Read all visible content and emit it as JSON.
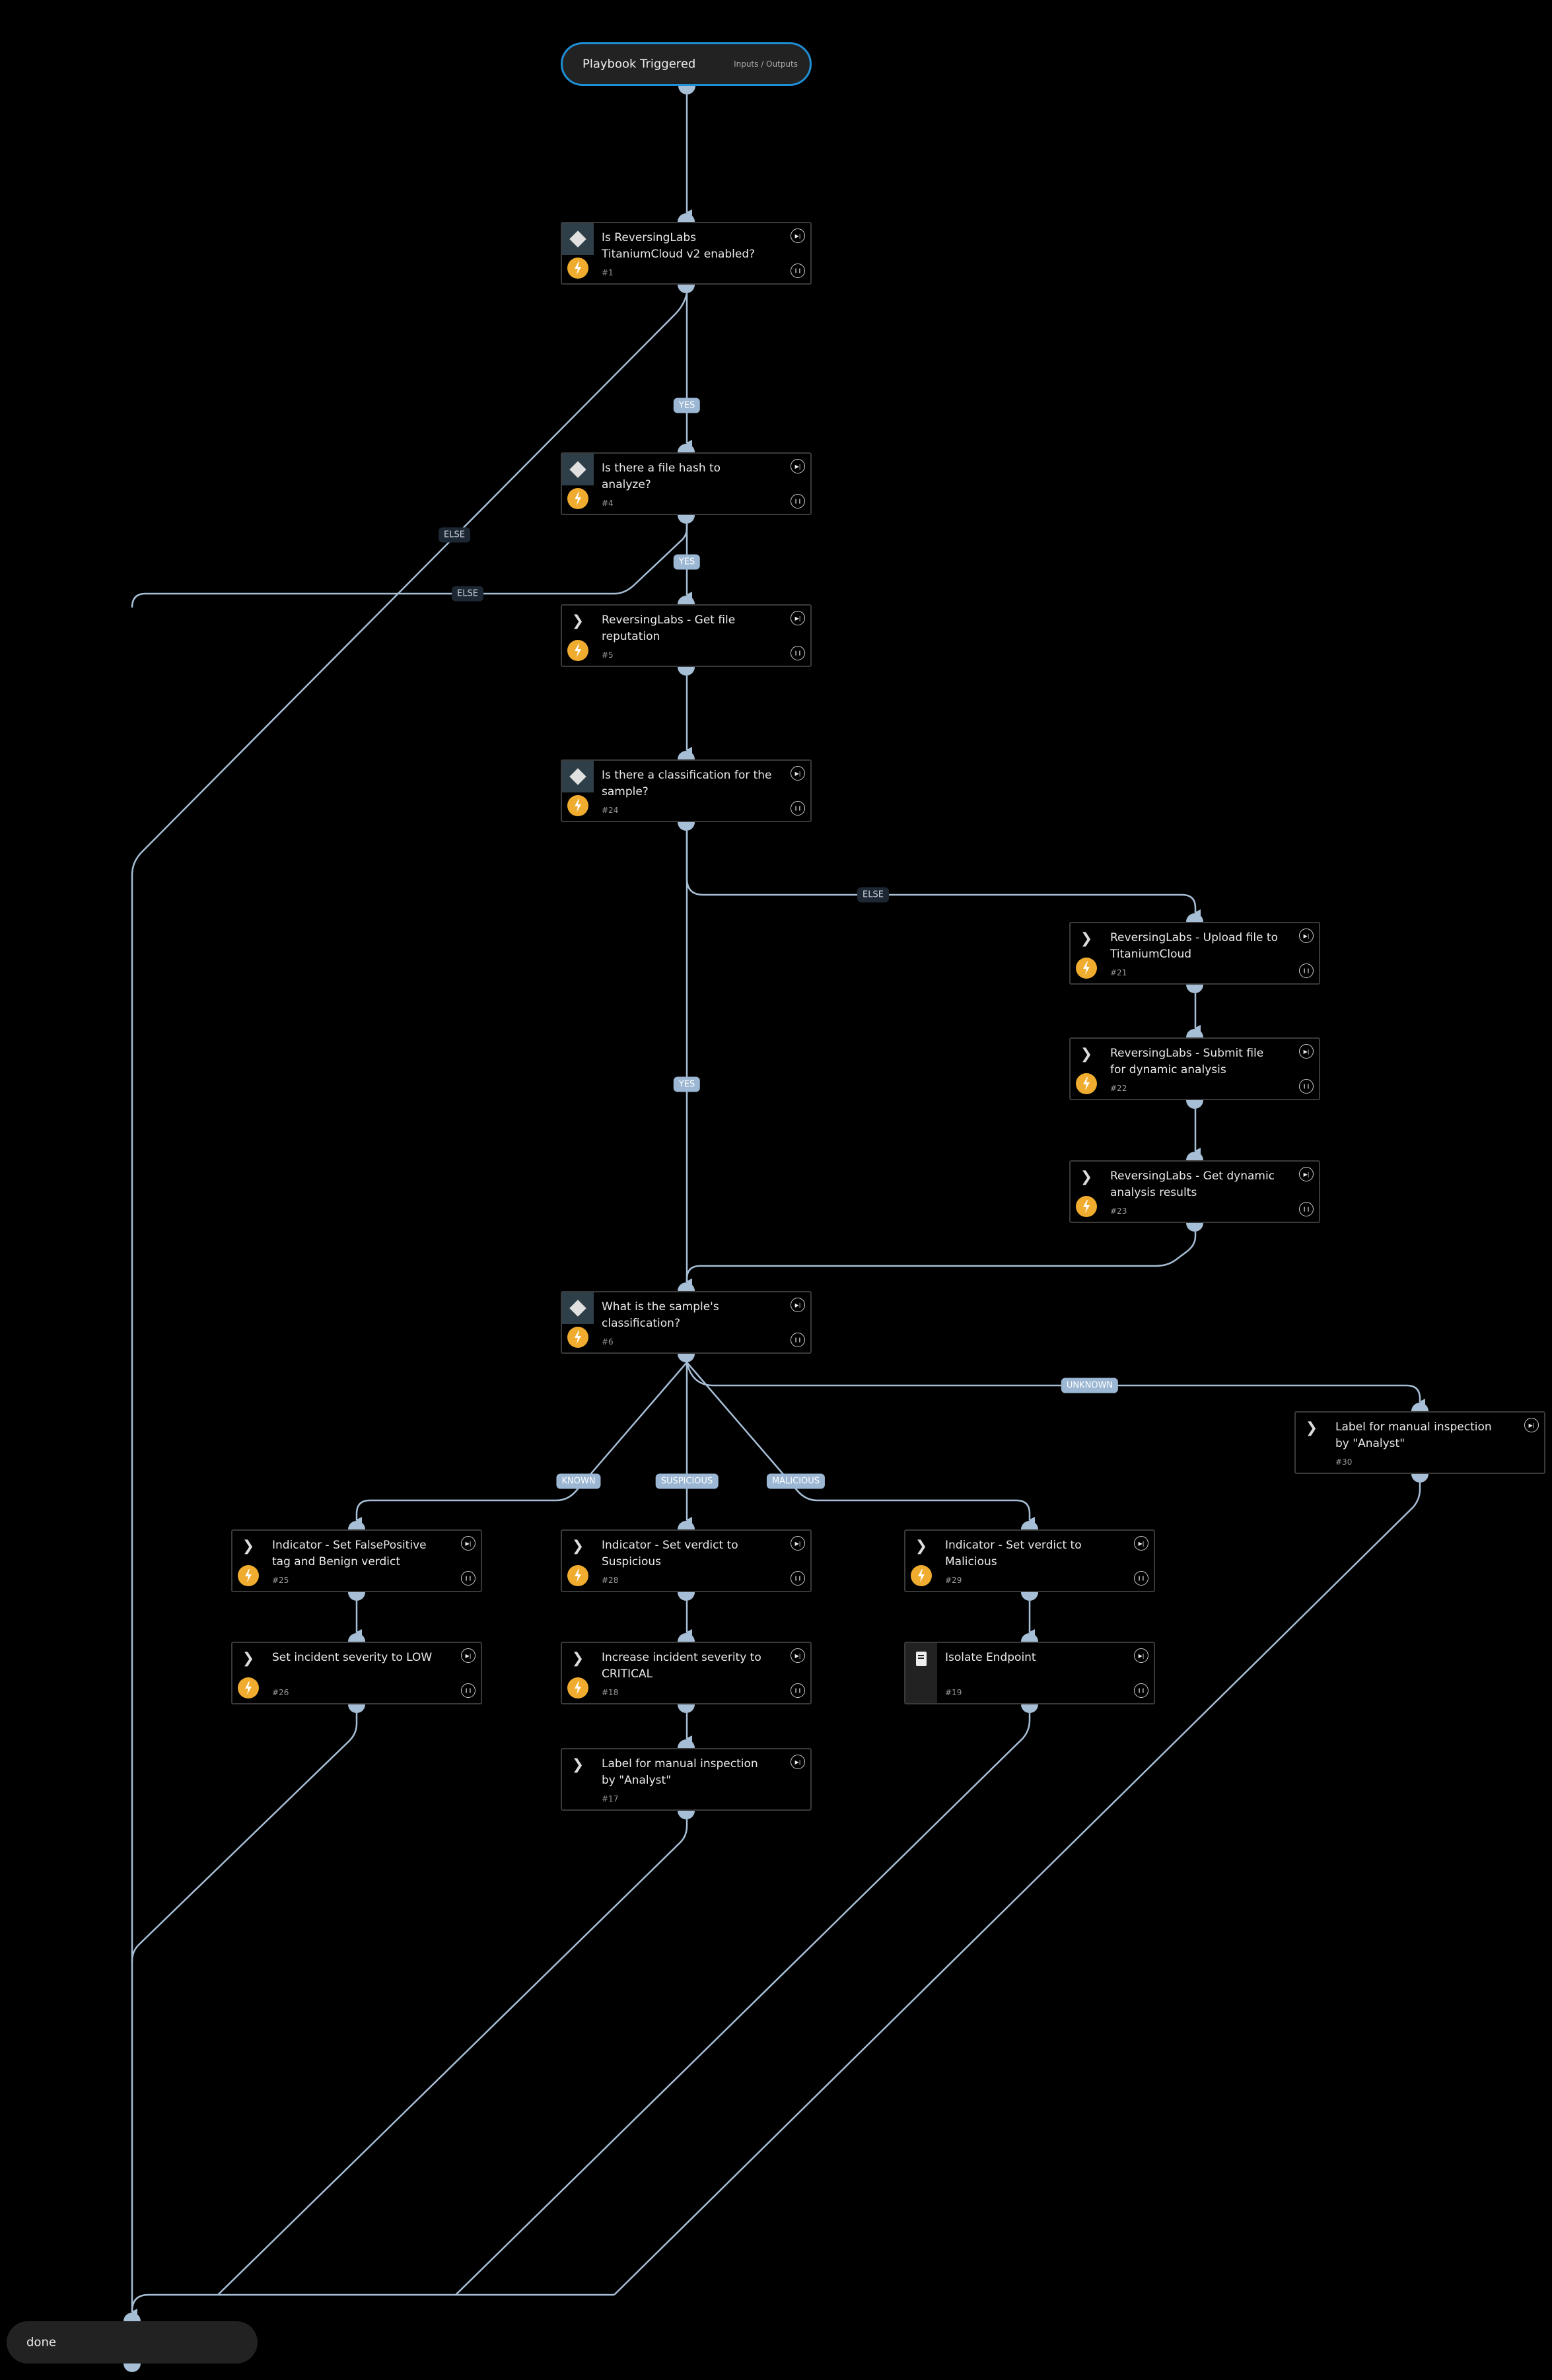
{
  "start": {
    "title": "Playbook Triggered",
    "io_label": "Inputs / Outputs"
  },
  "end": {
    "title": "done"
  },
  "colors": {
    "edge": "#a7bfd6",
    "start_border": "#1f8fd6",
    "bolt": "#f0ac2e",
    "condition_label_bg": "#9cb7d3",
    "else_label_bg": "#1d2733"
  },
  "nodes": [
    {
      "id": "1",
      "number": "#1",
      "title": "Is ReversingLabs TitaniumCloud v2 enabled?",
      "type": "condition",
      "icon": "diamond-icon",
      "automated": true
    },
    {
      "id": "4",
      "number": "#4",
      "title": "Is there a file hash to analyze?",
      "type": "condition",
      "icon": "diamond-icon",
      "automated": true
    },
    {
      "id": "5",
      "number": "#5",
      "title": "ReversingLabs - Get file reputation",
      "type": "task",
      "icon": "chevron-icon",
      "automated": true
    },
    {
      "id": "24",
      "number": "#24",
      "title": "Is there a classification for the sample?",
      "type": "condition",
      "icon": "diamond-icon",
      "automated": true
    },
    {
      "id": "21",
      "number": "#21",
      "title": "ReversingLabs - Upload file to TitaniumCloud",
      "type": "task",
      "icon": "chevron-icon",
      "automated": true
    },
    {
      "id": "22",
      "number": "#22",
      "title": "ReversingLabs - Submit file for dynamic analysis",
      "type": "task",
      "icon": "chevron-icon",
      "automated": true
    },
    {
      "id": "23",
      "number": "#23",
      "title": "ReversingLabs - Get dynamic analysis results",
      "type": "task",
      "icon": "chevron-icon",
      "automated": true
    },
    {
      "id": "6",
      "number": "#6",
      "title": "What is the sample's classification?",
      "type": "condition",
      "icon": "diamond-icon",
      "automated": true
    },
    {
      "id": "30",
      "number": "#30",
      "title": "Label for manual inspection by \"Analyst\"",
      "type": "task",
      "icon": "chevron-icon",
      "automated": false
    },
    {
      "id": "25",
      "number": "#25",
      "title": "Indicator - Set FalsePositive tag and Benign verdict",
      "type": "task",
      "icon": "chevron-icon",
      "automated": true
    },
    {
      "id": "28",
      "number": "#28",
      "title": "Indicator - Set verdict to Suspicious",
      "type": "task",
      "icon": "chevron-icon",
      "automated": true
    },
    {
      "id": "29",
      "number": "#29",
      "title": "Indicator - Set verdict to Malicious",
      "type": "task",
      "icon": "chevron-icon",
      "automated": true
    },
    {
      "id": "26",
      "number": "#26",
      "title": "Set incident severity to LOW",
      "type": "task",
      "icon": "chevron-icon",
      "automated": true
    },
    {
      "id": "18",
      "number": "#18",
      "title": "Increase incident severity to CRITICAL",
      "type": "task",
      "icon": "chevron-icon",
      "automated": true
    },
    {
      "id": "19",
      "number": "#19",
      "title": "Isolate Endpoint",
      "type": "playbook",
      "icon": "book-icon",
      "automated": false
    },
    {
      "id": "17",
      "number": "#17",
      "title": "Label for manual inspection by \"Analyst\"",
      "type": "task",
      "icon": "chevron-icon",
      "automated": false
    }
  ],
  "edge_labels": [
    {
      "text": "YES",
      "kind": "cond"
    },
    {
      "text": "ELSE",
      "kind": "else"
    },
    {
      "text": "YES",
      "kind": "cond"
    },
    {
      "text": "ELSE",
      "kind": "else"
    },
    {
      "text": "ELSE",
      "kind": "else"
    },
    {
      "text": "YES",
      "kind": "cond"
    },
    {
      "text": "UNKNOWN",
      "kind": "cond"
    },
    {
      "text": "KNOWN",
      "kind": "cond"
    },
    {
      "text": "SUSPICIOUS",
      "kind": "cond"
    },
    {
      "text": "MALICIOUS",
      "kind": "cond"
    }
  ]
}
